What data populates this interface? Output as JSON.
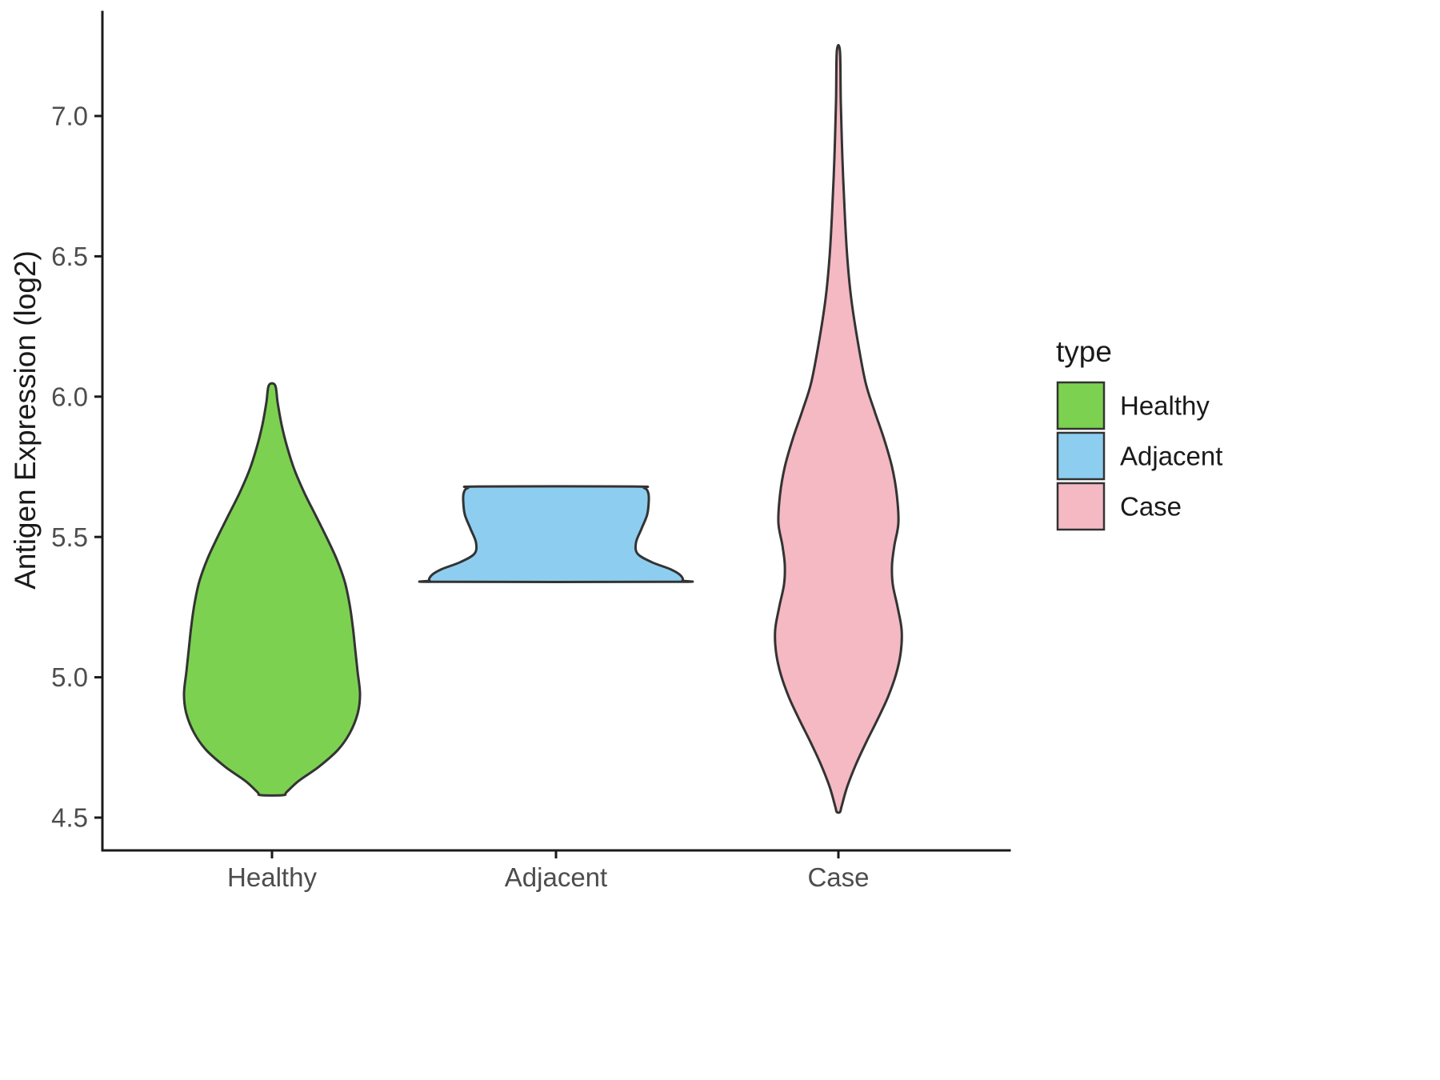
{
  "chart_data": {
    "type": "violin",
    "title": "",
    "xlabel": "",
    "ylabel": "Antigen Expression (log2)",
    "categories": [
      "Healthy",
      "Adjacent",
      "Case"
    ],
    "y_ticks": [
      {
        "value": 4.5,
        "label": "4.5"
      },
      {
        "value": 5.0,
        "label": "5.0"
      },
      {
        "value": 5.5,
        "label": "5.5"
      },
      {
        "value": 6.0,
        "label": "6.0"
      },
      {
        "value": 6.5,
        "label": "6.5"
      },
      {
        "value": 7.0,
        "label": "7.0"
      }
    ],
    "ylim": [
      4.3,
      7.35
    ],
    "grid": false,
    "legend": {
      "title": "type",
      "position": "right",
      "entries": [
        {
          "label": "Healthy",
          "color": "#7dd150"
        },
        {
          "label": "Adjacent",
          "color": "#8dcef0"
        },
        {
          "label": "Case",
          "color": "#f4b9c3"
        }
      ]
    },
    "outline_color": "#333333",
    "axis_color": "#1a1a1a",
    "series": [
      {
        "name": "Healthy",
        "color": "#7dd150",
        "y_min": 4.58,
        "y_max": 6.04,
        "profile": [
          [
            6.04,
            4
          ],
          [
            5.98,
            7
          ],
          [
            5.9,
            12
          ],
          [
            5.82,
            19
          ],
          [
            5.74,
            28
          ],
          [
            5.66,
            40
          ],
          [
            5.58,
            54
          ],
          [
            5.5,
            68
          ],
          [
            5.42,
            81
          ],
          [
            5.34,
            91
          ],
          [
            5.26,
            97
          ],
          [
            5.18,
            101
          ],
          [
            5.1,
            104
          ],
          [
            5.02,
            107
          ],
          [
            4.94,
            110
          ],
          [
            4.87,
            107
          ],
          [
            4.8,
            97
          ],
          [
            4.74,
            82
          ],
          [
            4.68,
            58
          ],
          [
            4.63,
            33
          ],
          [
            4.59,
            18
          ],
          [
            4.58,
            14
          ]
        ]
      },
      {
        "name": "Adjacent",
        "color": "#8dcef0",
        "y_min": 5.34,
        "y_max": 5.68,
        "profile": [
          [
            5.68,
            96
          ],
          [
            5.675,
            110
          ],
          [
            5.66,
            115
          ],
          [
            5.63,
            116
          ],
          [
            5.58,
            114
          ],
          [
            5.53,
            107
          ],
          [
            5.48,
            100
          ],
          [
            5.44,
            102
          ],
          [
            5.41,
            120
          ],
          [
            5.385,
            143
          ],
          [
            5.365,
            155
          ],
          [
            5.345,
            158
          ],
          [
            5.34,
            145
          ]
        ]
      },
      {
        "name": "Case",
        "color": "#f4b9c3",
        "y_min": 4.52,
        "y_max": 7.23,
        "profile": [
          [
            7.23,
            2
          ],
          [
            7.05,
            3
          ],
          [
            6.85,
            5
          ],
          [
            6.65,
            8
          ],
          [
            6.5,
            11
          ],
          [
            6.35,
            16
          ],
          [
            6.2,
            24
          ],
          [
            6.05,
            34
          ],
          [
            5.95,
            45
          ],
          [
            5.85,
            57
          ],
          [
            5.75,
            67
          ],
          [
            5.65,
            73
          ],
          [
            5.55,
            75
          ],
          [
            5.47,
            70
          ],
          [
            5.4,
            67
          ],
          [
            5.33,
            68
          ],
          [
            5.25,
            74
          ],
          [
            5.17,
            79
          ],
          [
            5.09,
            78
          ],
          [
            5.01,
            72
          ],
          [
            4.93,
            62
          ],
          [
            4.85,
            49
          ],
          [
            4.77,
            35
          ],
          [
            4.69,
            22
          ],
          [
            4.61,
            11
          ],
          [
            4.54,
            4
          ],
          [
            4.52,
            2
          ]
        ]
      }
    ]
  },
  "layout_hints": {
    "stroke_width_violin": 3,
    "stroke_width_axis": 3
  }
}
